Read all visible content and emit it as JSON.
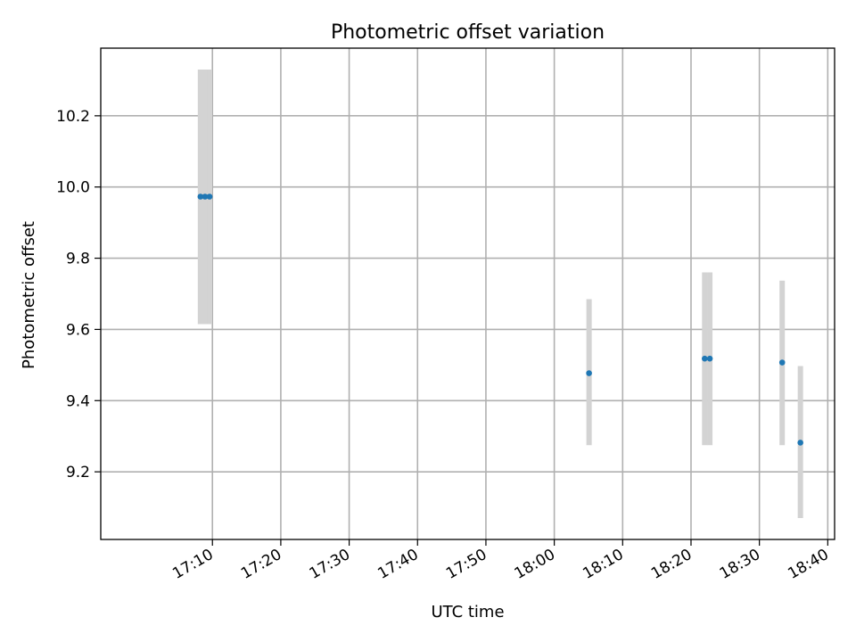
{
  "chart_data": {
    "type": "scatter",
    "title": "Photometric offset variation",
    "xlabel": "UTC time",
    "ylabel": "Photometric offset",
    "grid": true,
    "xlim": [
      "16:53:40",
      "18:41:00"
    ],
    "ylim": [
      9.01,
      10.39
    ],
    "xticks": [
      "17:10",
      "17:20",
      "17:30",
      "17:40",
      "17:50",
      "18:00",
      "18:10",
      "18:20",
      "18:30",
      "18:40"
    ],
    "yticks": [
      "9.2",
      "9.4",
      "9.6",
      "9.8",
      "10.0",
      "10.2"
    ],
    "series": [
      {
        "points": [
          {
            "x": "17:08:15",
            "y": 9.973,
            "err_low": 9.615,
            "err_high": 10.33
          },
          {
            "x": "17:08:55",
            "y": 9.973,
            "err_low": 9.615,
            "err_high": 10.33
          },
          {
            "x": "17:09:35",
            "y": 9.973,
            "err_low": 9.615,
            "err_high": 10.33
          },
          {
            "x": "18:05:05",
            "y": 9.477,
            "err_low": 9.275,
            "err_high": 9.685
          },
          {
            "x": "18:22:00",
            "y": 9.518,
            "err_low": 9.275,
            "err_high": 9.76
          },
          {
            "x": "18:22:45",
            "y": 9.518,
            "err_low": 9.275,
            "err_high": 9.76
          },
          {
            "x": "18:33:20",
            "y": 9.507,
            "err_low": 9.275,
            "err_high": 9.737
          },
          {
            "x": "18:36:00",
            "y": 9.282,
            "err_low": 9.07,
            "err_high": 9.497
          }
        ]
      }
    ],
    "colors": {
      "marker": "#1f77b4",
      "errorbar": "#d3d3d3",
      "grid": "#b0b0b0",
      "axes": "#000000"
    }
  }
}
